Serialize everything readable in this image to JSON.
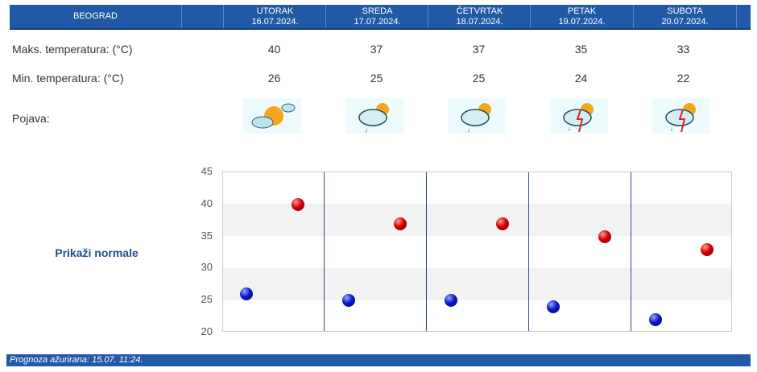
{
  "header": {
    "city": "BEOGRAD",
    "days": [
      {
        "name": "UTORAK",
        "date": "16.07.2024."
      },
      {
        "name": "SREDA",
        "date": "17.07.2024."
      },
      {
        "name": "ČETVRTAK",
        "date": "18.07.2024."
      },
      {
        "name": "PETAK",
        "date": "19.07.2024."
      },
      {
        "name": "SUBOTA",
        "date": "20.07.2024."
      }
    ]
  },
  "rows": {
    "max_label": "Maks. temperatura: (°C)",
    "min_label": "Min. temperatura: (°C)",
    "phen_label": "Pojava:",
    "max": [
      "40",
      "37",
      "37",
      "35",
      "33"
    ],
    "min": [
      "26",
      "25",
      "25",
      "24",
      "22"
    ],
    "icons": [
      "sun-with-clouds-icon",
      "cloud-sun-light-rain-icon",
      "cloud-sun-light-rain-icon",
      "thunderstorm-sun-icon",
      "thunderstorm-sun-icon"
    ]
  },
  "show_normals": "Prikaži normale",
  "chart_data": {
    "type": "scatter",
    "yticks": [
      "45",
      "40",
      "35",
      "30",
      "25",
      "20"
    ],
    "ylim": [
      20,
      45
    ],
    "categories": [
      "16.07.",
      "17.07.",
      "18.07.",
      "19.07.",
      "20.07."
    ],
    "series": [
      {
        "name": "max",
        "color": "#d00000",
        "values": [
          40,
          37,
          37,
          35,
          33
        ]
      },
      {
        "name": "min",
        "color": "#0b17c8",
        "values": [
          26,
          25,
          25,
          24,
          22
        ]
      }
    ]
  },
  "footer": "Prognoza ažurirana:  15.07. 11:24."
}
